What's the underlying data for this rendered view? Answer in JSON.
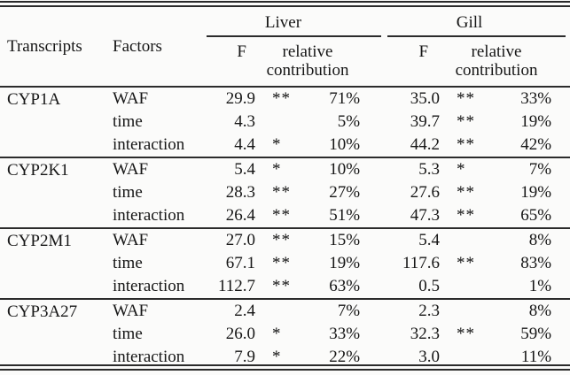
{
  "table": {
    "headers": {
      "transcripts": "Transcripts",
      "factors": "Factors",
      "liver": "Liver",
      "gill": "Gill",
      "f": "F",
      "relative_contribution": "relative contribution"
    },
    "groups": [
      {
        "transcript": "CYP1A",
        "rows": [
          {
            "factor": "WAF",
            "liver_f": "29.9",
            "liver_sig": "**",
            "liver_rc": "71%",
            "gill_f": "35.0",
            "gill_sig": "**",
            "gill_rc": "33%"
          },
          {
            "factor": "time",
            "liver_f": "4.3",
            "liver_sig": "",
            "liver_rc": "5%",
            "gill_f": "39.7",
            "gill_sig": "**",
            "gill_rc": "19%"
          },
          {
            "factor": "interaction",
            "liver_f": "4.4",
            "liver_sig": "*",
            "liver_rc": "10%",
            "gill_f": "44.2",
            "gill_sig": "**",
            "gill_rc": "42%"
          }
        ]
      },
      {
        "transcript": "CYP2K1",
        "rows": [
          {
            "factor": "WAF",
            "liver_f": "5.4",
            "liver_sig": "*",
            "liver_rc": "10%",
            "gill_f": "5.3",
            "gill_sig": "*",
            "gill_rc": "7%"
          },
          {
            "factor": "time",
            "liver_f": "28.3",
            "liver_sig": "**",
            "liver_rc": "27%",
            "gill_f": "27.6",
            "gill_sig": "**",
            "gill_rc": "19%"
          },
          {
            "factor": "interaction",
            "liver_f": "26.4",
            "liver_sig": "**",
            "liver_rc": "51%",
            "gill_f": "47.3",
            "gill_sig": "**",
            "gill_rc": "65%"
          }
        ]
      },
      {
        "transcript": "CYP2M1",
        "rows": [
          {
            "factor": "WAF",
            "liver_f": "27.0",
            "liver_sig": "**",
            "liver_rc": "15%",
            "gill_f": "5.4",
            "gill_sig": "",
            "gill_rc": "8%"
          },
          {
            "factor": "time",
            "liver_f": "67.1",
            "liver_sig": "**",
            "liver_rc": "19%",
            "gill_f": "117.6",
            "gill_sig": "**",
            "gill_rc": "83%"
          },
          {
            "factor": "interaction",
            "liver_f": "112.7",
            "liver_sig": "**",
            "liver_rc": "63%",
            "gill_f": "0.5",
            "gill_sig": "",
            "gill_rc": "1%"
          }
        ]
      },
      {
        "transcript": "CYP3A27",
        "rows": [
          {
            "factor": "WAF",
            "liver_f": "2.4",
            "liver_sig": "",
            "liver_rc": "7%",
            "gill_f": "2.3",
            "gill_sig": "",
            "gill_rc": "8%"
          },
          {
            "factor": "time",
            "liver_f": "26.0",
            "liver_sig": "*",
            "liver_rc": "33%",
            "gill_f": "32.3",
            "gill_sig": "**",
            "gill_rc": "59%"
          },
          {
            "factor": "interaction",
            "liver_f": "7.9",
            "liver_sig": "*",
            "liver_rc": "22%",
            "gill_f": "3.0",
            "gill_sig": "",
            "gill_rc": "11%"
          }
        ]
      }
    ],
    "colors": {
      "background": "#fbfbfa",
      "text": "#161616",
      "rule": "#2b2b2b"
    }
  }
}
